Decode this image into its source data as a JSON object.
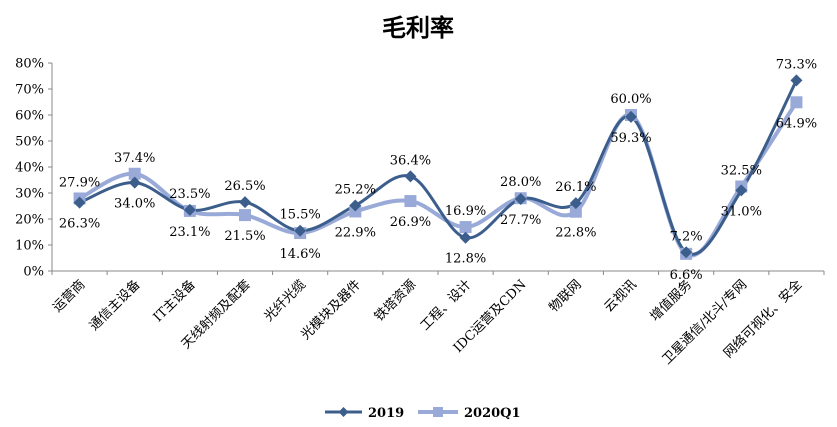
{
  "chart_data": {
    "type": "line",
    "title": "毛利率",
    "categories": [
      "运营商",
      "通信主设备",
      "IT主设备",
      "天线射频及配套",
      "光纤光缆",
      "光模块及器件",
      "铁塔资源",
      "工程、设计",
      "IDC运营及CDN",
      "物联网",
      "云视讯",
      "增值服务",
      "卫星通信/北斗/专网",
      "网络可视化、安全"
    ],
    "yticks": [
      "0%",
      "10%",
      "20%",
      "30%",
      "40%",
      "50%",
      "60%",
      "70%",
      "80%"
    ],
    "ylim": [
      0,
      80
    ],
    "series": [
      {
        "name": "2019",
        "color": "#3C5E8C",
        "marker": "diamond",
        "values": [
          26.3,
          34.0,
          23.5,
          26.5,
          15.5,
          25.2,
          36.4,
          12.8,
          27.7,
          26.1,
          59.3,
          7.2,
          31.0,
          73.3
        ],
        "labels": [
          "26.3%",
          "34.0%",
          "23.5%",
          "26.5%",
          "15.5%",
          "25.2%",
          "36.4%",
          "12.8%",
          "27.7%",
          "26.1%",
          "59.3%",
          "7.2%",
          "31.0%",
          "73.3%"
        ]
      },
      {
        "name": "2020Q1",
        "color": "#9AAAD8",
        "marker": "square",
        "values": [
          27.9,
          37.4,
          23.1,
          21.5,
          14.6,
          22.9,
          26.9,
          16.9,
          28.0,
          22.8,
          60.0,
          6.6,
          32.5,
          64.9
        ],
        "labels": [
          "27.9%",
          "37.4%",
          "23.1%",
          "21.5%",
          "14.6%",
          "22.9%",
          "26.9%",
          "16.9%",
          "28.0%",
          "22.8%",
          "60.0%",
          "6.6%",
          "32.5%",
          "64.9%"
        ]
      }
    ],
    "legend": {
      "position": "bottom",
      "items": [
        "2019",
        "2020Q1"
      ]
    },
    "grid": false
  }
}
